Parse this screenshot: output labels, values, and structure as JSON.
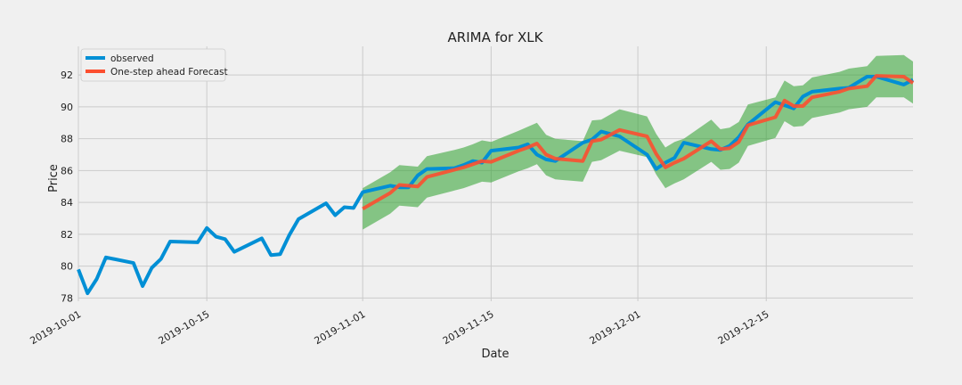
{
  "chart_data": {
    "type": "line",
    "title": "ARIMA for XLK",
    "xlabel": "Date",
    "ylabel": "Price",
    "xlim": [
      "2019-10-01",
      "2019-12-31"
    ],
    "ylim": [
      77.8,
      93.8
    ],
    "yticks": [
      78,
      80,
      82,
      84,
      86,
      88,
      90,
      92
    ],
    "xticks": [
      {
        "date": "2019-10-01",
        "label": "2019-10-01"
      },
      {
        "date": "2019-10-15",
        "label": "2019-10-15"
      },
      {
        "date": "2019-11-01",
        "label": "2019-11-01"
      },
      {
        "date": "2019-11-15",
        "label": "2019-11-15"
      },
      {
        "date": "2019-12-01",
        "label": "2019-12-01"
      },
      {
        "date": "2019-12-15",
        "label": "2019-12-15"
      }
    ],
    "grid": true,
    "legend_position": "top-left",
    "colors": {
      "observed": "#008fd5",
      "forecast": "#fc4f30",
      "confidence": "#2ca02c"
    },
    "series": [
      {
        "name": "observed",
        "points": [
          [
            "2019-10-01",
            79.8
          ],
          [
            "2019-10-02",
            78.3
          ],
          [
            "2019-10-03",
            79.2
          ],
          [
            "2019-10-04",
            80.55
          ],
          [
            "2019-10-07",
            80.2
          ],
          [
            "2019-10-08",
            78.75
          ],
          [
            "2019-10-09",
            79.9
          ],
          [
            "2019-10-10",
            80.45
          ],
          [
            "2019-10-11",
            81.55
          ],
          [
            "2019-10-14",
            81.5
          ],
          [
            "2019-10-15",
            82.4
          ],
          [
            "2019-10-16",
            81.85
          ],
          [
            "2019-10-17",
            81.7
          ],
          [
            "2019-10-18",
            80.9
          ],
          [
            "2019-10-21",
            81.75
          ],
          [
            "2019-10-22",
            80.7
          ],
          [
            "2019-10-23",
            80.75
          ],
          [
            "2019-10-24",
            81.95
          ],
          [
            "2019-10-25",
            82.95
          ],
          [
            "2019-10-28",
            83.95
          ],
          [
            "2019-10-29",
            83.2
          ],
          [
            "2019-10-30",
            83.7
          ],
          [
            "2019-10-31",
            83.65
          ],
          [
            "2019-11-01",
            84.65
          ],
          [
            "2019-11-04",
            85.05
          ],
          [
            "2019-11-05",
            84.95
          ],
          [
            "2019-11-06",
            84.95
          ],
          [
            "2019-11-07",
            85.7
          ],
          [
            "2019-11-08",
            86.1
          ],
          [
            "2019-11-11",
            86.15
          ],
          [
            "2019-11-12",
            86.35
          ],
          [
            "2019-11-13",
            86.6
          ],
          [
            "2019-11-14",
            86.5
          ],
          [
            "2019-11-15",
            87.25
          ],
          [
            "2019-11-18",
            87.45
          ],
          [
            "2019-11-19",
            87.65
          ],
          [
            "2019-11-20",
            87.0
          ],
          [
            "2019-11-21",
            86.7
          ],
          [
            "2019-11-22",
            86.6
          ],
          [
            "2019-11-25",
            87.75
          ],
          [
            "2019-11-26",
            87.95
          ],
          [
            "2019-11-27",
            88.45
          ],
          [
            "2019-11-29",
            88.15
          ],
          [
            "2019-12-02",
            87.0
          ],
          [
            "2019-12-03",
            86.1
          ],
          [
            "2019-12-04",
            86.5
          ],
          [
            "2019-12-05",
            86.8
          ],
          [
            "2019-12-06",
            87.75
          ],
          [
            "2019-12-09",
            87.35
          ],
          [
            "2019-12-10",
            87.3
          ],
          [
            "2019-12-11",
            87.55
          ],
          [
            "2019-12-12",
            88.1
          ],
          [
            "2019-12-13",
            88.9
          ],
          [
            "2019-12-16",
            90.3
          ],
          [
            "2019-12-17",
            90.1
          ],
          [
            "2019-12-18",
            89.9
          ],
          [
            "2019-12-19",
            90.65
          ],
          [
            "2019-12-20",
            90.95
          ],
          [
            "2019-12-23",
            91.15
          ],
          [
            "2019-12-24",
            91.2
          ],
          [
            "2019-12-26",
            91.9
          ],
          [
            "2019-12-27",
            91.9
          ],
          [
            "2019-12-30",
            91.4
          ],
          [
            "2019-12-31",
            91.7
          ]
        ]
      },
      {
        "name": "One-step ahead Forecast",
        "points": [
          [
            "2019-11-01",
            83.6
          ],
          [
            "2019-11-04",
            84.6
          ],
          [
            "2019-11-05",
            85.1
          ],
          [
            "2019-11-06",
            85.05
          ],
          [
            "2019-11-07",
            85.0
          ],
          [
            "2019-11-08",
            85.6
          ],
          [
            "2019-11-11",
            86.05
          ],
          [
            "2019-11-12",
            86.2
          ],
          [
            "2019-11-13",
            86.4
          ],
          [
            "2019-11-14",
            86.6
          ],
          [
            "2019-11-15",
            86.55
          ],
          [
            "2019-11-18",
            87.25
          ],
          [
            "2019-11-19",
            87.45
          ],
          [
            "2019-11-20",
            87.7
          ],
          [
            "2019-11-21",
            87.0
          ],
          [
            "2019-11-22",
            86.75
          ],
          [
            "2019-11-25",
            86.6
          ],
          [
            "2019-11-26",
            87.85
          ],
          [
            "2019-11-27",
            87.95
          ],
          [
            "2019-11-29",
            88.55
          ],
          [
            "2019-12-02",
            88.15
          ],
          [
            "2019-12-03",
            87.05
          ],
          [
            "2019-12-04",
            86.2
          ],
          [
            "2019-12-05",
            86.5
          ],
          [
            "2019-12-06",
            86.75
          ],
          [
            "2019-12-09",
            87.85
          ],
          [
            "2019-12-10",
            87.35
          ],
          [
            "2019-12-11",
            87.4
          ],
          [
            "2019-12-12",
            87.8
          ],
          [
            "2019-12-13",
            88.85
          ],
          [
            "2019-12-16",
            89.35
          ],
          [
            "2019-12-17",
            90.4
          ],
          [
            "2019-12-18",
            90.05
          ],
          [
            "2019-12-19",
            90.05
          ],
          [
            "2019-12-20",
            90.6
          ],
          [
            "2019-12-23",
            90.95
          ],
          [
            "2019-12-24",
            91.15
          ],
          [
            "2019-12-26",
            91.3
          ],
          [
            "2019-12-27",
            91.95
          ],
          [
            "2019-12-30",
            91.9
          ],
          [
            "2019-12-31",
            91.5
          ]
        ]
      }
    ],
    "confidence_interval": {
      "upper": [
        [
          "2019-11-01",
          84.9
        ],
        [
          "2019-11-04",
          85.9
        ],
        [
          "2019-11-05",
          86.35
        ],
        [
          "2019-11-06",
          86.3
        ],
        [
          "2019-11-07",
          86.25
        ],
        [
          "2019-11-08",
          86.9
        ],
        [
          "2019-11-11",
          87.3
        ],
        [
          "2019-11-12",
          87.45
        ],
        [
          "2019-11-13",
          87.65
        ],
        [
          "2019-11-14",
          87.9
        ],
        [
          "2019-11-15",
          87.8
        ],
        [
          "2019-11-18",
          88.5
        ],
        [
          "2019-11-19",
          88.75
        ],
        [
          "2019-11-20",
          89.0
        ],
        [
          "2019-11-21",
          88.25
        ],
        [
          "2019-11-22",
          88.0
        ],
        [
          "2019-11-25",
          87.85
        ],
        [
          "2019-11-26",
          89.15
        ],
        [
          "2019-11-27",
          89.2
        ],
        [
          "2019-11-29",
          89.85
        ],
        [
          "2019-12-02",
          89.4
        ],
        [
          "2019-12-03",
          88.3
        ],
        [
          "2019-12-04",
          87.45
        ],
        [
          "2019-12-05",
          87.8
        ],
        [
          "2019-12-06",
          88.0
        ],
        [
          "2019-12-09",
          89.2
        ],
        [
          "2019-12-10",
          88.6
        ],
        [
          "2019-12-11",
          88.7
        ],
        [
          "2019-12-12",
          89.05
        ],
        [
          "2019-12-13",
          90.15
        ],
        [
          "2019-12-16",
          90.6
        ],
        [
          "2019-12-17",
          91.65
        ],
        [
          "2019-12-18",
          91.3
        ],
        [
          "2019-12-19",
          91.35
        ],
        [
          "2019-12-20",
          91.85
        ],
        [
          "2019-12-23",
          92.2
        ],
        [
          "2019-12-24",
          92.4
        ],
        [
          "2019-12-26",
          92.55
        ],
        [
          "2019-12-27",
          93.2
        ],
        [
          "2019-12-30",
          93.25
        ],
        [
          "2019-12-31",
          92.85
        ]
      ],
      "lower": [
        [
          "2019-11-01",
          82.3
        ],
        [
          "2019-11-04",
          83.3
        ],
        [
          "2019-11-05",
          83.8
        ],
        [
          "2019-11-06",
          83.75
        ],
        [
          "2019-11-07",
          83.7
        ],
        [
          "2019-11-08",
          84.3
        ],
        [
          "2019-11-11",
          84.75
        ],
        [
          "2019-11-12",
          84.9
        ],
        [
          "2019-11-13",
          85.1
        ],
        [
          "2019-11-14",
          85.3
        ],
        [
          "2019-11-15",
          85.25
        ],
        [
          "2019-11-18",
          85.95
        ],
        [
          "2019-11-19",
          86.15
        ],
        [
          "2019-11-20",
          86.4
        ],
        [
          "2019-11-21",
          85.7
        ],
        [
          "2019-11-22",
          85.45
        ],
        [
          "2019-11-25",
          85.3
        ],
        [
          "2019-11-26",
          86.55
        ],
        [
          "2019-11-27",
          86.65
        ],
        [
          "2019-11-29",
          87.25
        ],
        [
          "2019-12-02",
          86.85
        ],
        [
          "2019-12-03",
          85.75
        ],
        [
          "2019-12-04",
          84.9
        ],
        [
          "2019-12-05",
          85.2
        ],
        [
          "2019-12-06",
          85.45
        ],
        [
          "2019-12-09",
          86.55
        ],
        [
          "2019-12-10",
          86.05
        ],
        [
          "2019-12-11",
          86.1
        ],
        [
          "2019-12-12",
          86.5
        ],
        [
          "2019-12-13",
          87.55
        ],
        [
          "2019-12-16",
          88.05
        ],
        [
          "2019-12-17",
          89.1
        ],
        [
          "2019-12-18",
          88.75
        ],
        [
          "2019-12-19",
          88.8
        ],
        [
          "2019-12-20",
          89.3
        ],
        [
          "2019-12-23",
          89.65
        ],
        [
          "2019-12-24",
          89.85
        ],
        [
          "2019-12-26",
          90.0
        ],
        [
          "2019-12-27",
          90.6
        ],
        [
          "2019-12-30",
          90.6
        ],
        [
          "2019-12-31",
          90.2
        ]
      ]
    }
  }
}
